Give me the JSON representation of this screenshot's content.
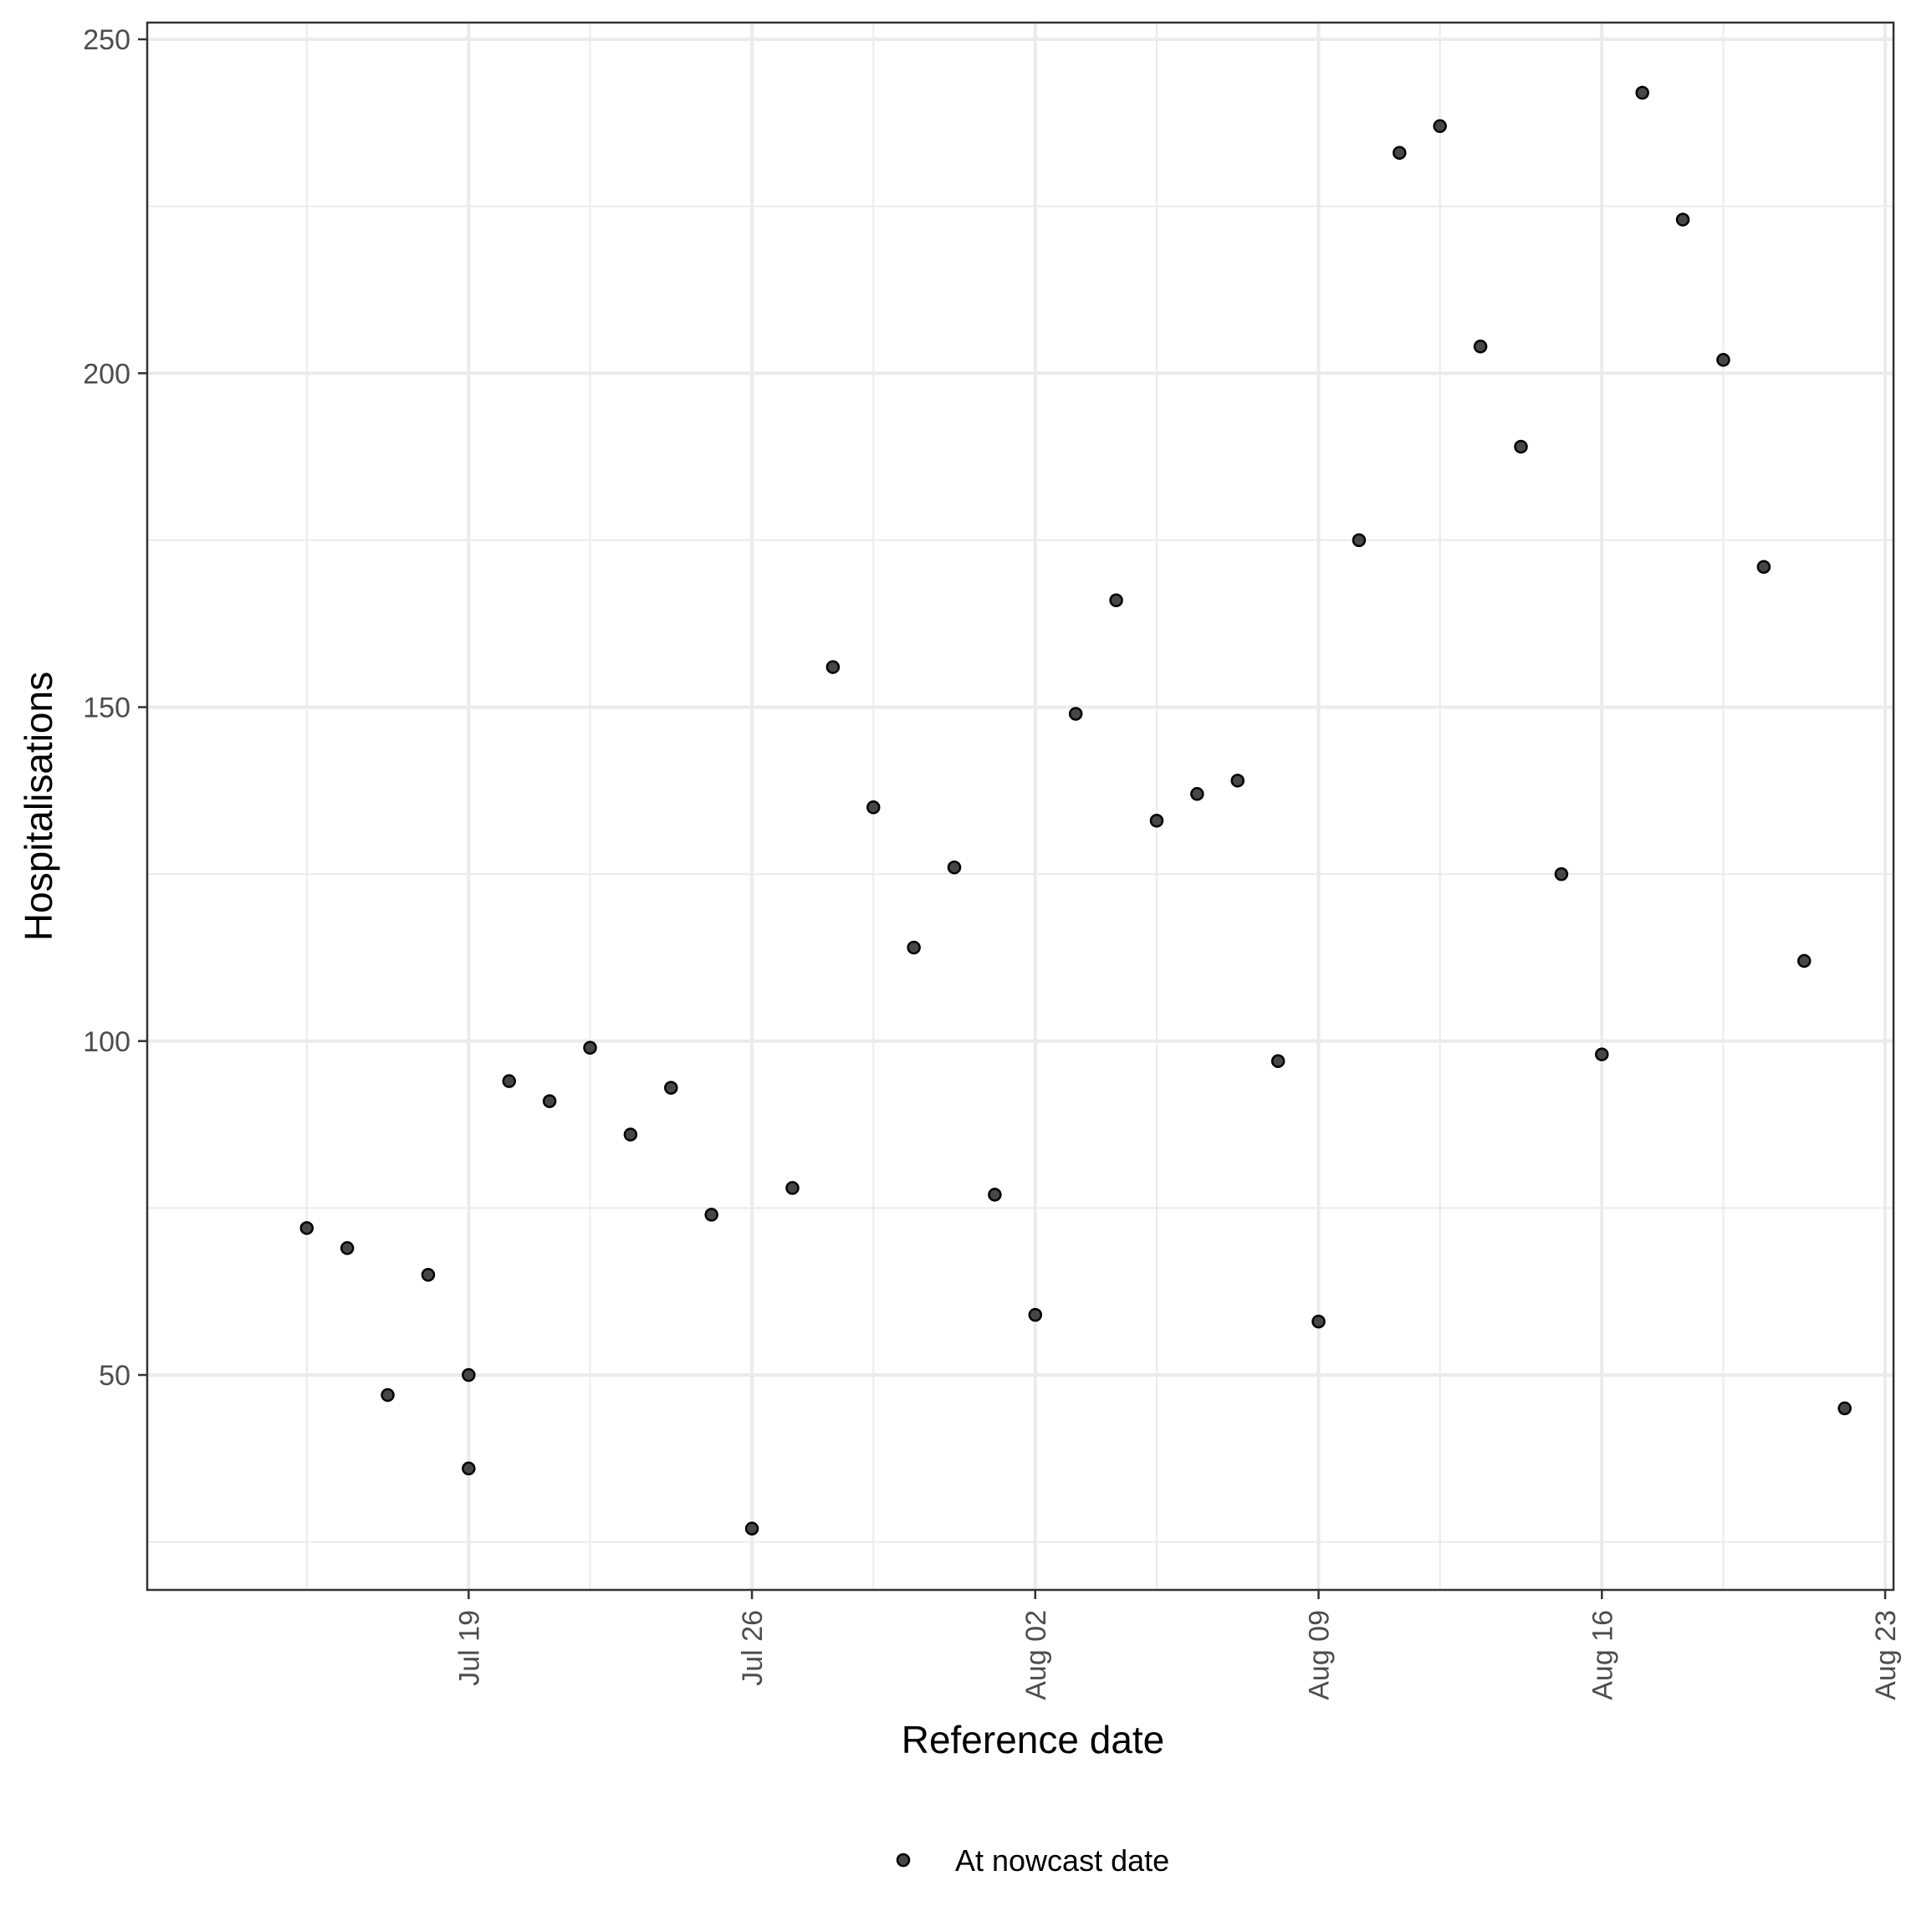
{
  "chart_data": {
    "type": "scatter",
    "xlabel": "Reference date",
    "ylabel": "Hospitalisations",
    "x_type": "date",
    "xlim": [
      "2021-07-13",
      "2021-08-23"
    ],
    "ylim": [
      16,
      252.5
    ],
    "x_ticks": [
      {
        "date": "2021-07-19",
        "label": "Jul 19"
      },
      {
        "date": "2021-07-26",
        "label": "Jul 26"
      },
      {
        "date": "2021-08-02",
        "label": "Aug 02"
      },
      {
        "date": "2021-08-09",
        "label": "Aug 09"
      },
      {
        "date": "2021-08-16",
        "label": "Aug 16"
      },
      {
        "date": "2021-08-23",
        "label": "Aug 23"
      }
    ],
    "x_minor_ticks": [
      "2021-07-15",
      "2021-07-22",
      "2021-07-29",
      "2021-08-05",
      "2021-08-12",
      "2021-08-19"
    ],
    "y_ticks": [
      50,
      100,
      150,
      200,
      250
    ],
    "y_minor_ticks": [
      25,
      75,
      125,
      175,
      225
    ],
    "grid": true,
    "legend": {
      "position": "bottom",
      "entries": [
        {
          "label": "At nowcast date",
          "marker": "circle",
          "color": "#333333"
        }
      ]
    },
    "series": [
      {
        "name": "At nowcast date",
        "color": "#333333",
        "points": [
          {
            "x": "2021-07-15",
            "y": 72
          },
          {
            "x": "2021-07-16",
            "y": 69
          },
          {
            "x": "2021-07-17",
            "y": 47
          },
          {
            "x": "2021-07-18",
            "y": 65
          },
          {
            "x": "2021-07-19",
            "y": 50
          },
          {
            "x": "2021-07-19",
            "y": 36
          },
          {
            "x": "2021-07-20",
            "y": 94
          },
          {
            "x": "2021-07-21",
            "y": 91
          },
          {
            "x": "2021-07-22",
            "y": 99
          },
          {
            "x": "2021-07-23",
            "y": 86
          },
          {
            "x": "2021-07-24",
            "y": 93
          },
          {
            "x": "2021-07-25",
            "y": 74
          },
          {
            "x": "2021-07-26",
            "y": 27
          },
          {
            "x": "2021-07-27",
            "y": 78
          },
          {
            "x": "2021-07-28",
            "y": 156
          },
          {
            "x": "2021-07-29",
            "y": 135
          },
          {
            "x": "2021-07-30",
            "y": 114
          },
          {
            "x": "2021-07-31",
            "y": 126
          },
          {
            "x": "2021-08-01",
            "y": 77
          },
          {
            "x": "2021-08-02",
            "y": 59
          },
          {
            "x": "2021-08-03",
            "y": 149
          },
          {
            "x": "2021-08-04",
            "y": 166
          },
          {
            "x": "2021-08-05",
            "y": 133
          },
          {
            "x": "2021-08-06",
            "y": 137
          },
          {
            "x": "2021-08-07",
            "y": 139
          },
          {
            "x": "2021-08-08",
            "y": 97
          },
          {
            "x": "2021-08-09",
            "y": 58
          },
          {
            "x": "2021-08-10",
            "y": 175
          },
          {
            "x": "2021-08-11",
            "y": 233
          },
          {
            "x": "2021-08-12",
            "y": 237
          },
          {
            "x": "2021-08-13",
            "y": 204
          },
          {
            "x": "2021-08-14",
            "y": 189
          },
          {
            "x": "2021-08-15",
            "y": 125
          },
          {
            "x": "2021-08-16",
            "y": 98
          },
          {
            "x": "2021-08-17",
            "y": 242
          },
          {
            "x": "2021-08-18",
            "y": 223
          },
          {
            "x": "2021-08-19",
            "y": 202
          },
          {
            "x": "2021-08-20",
            "y": 171
          },
          {
            "x": "2021-08-21",
            "y": 112
          },
          {
            "x": "2021-08-22",
            "y": 45
          }
        ]
      }
    ]
  }
}
